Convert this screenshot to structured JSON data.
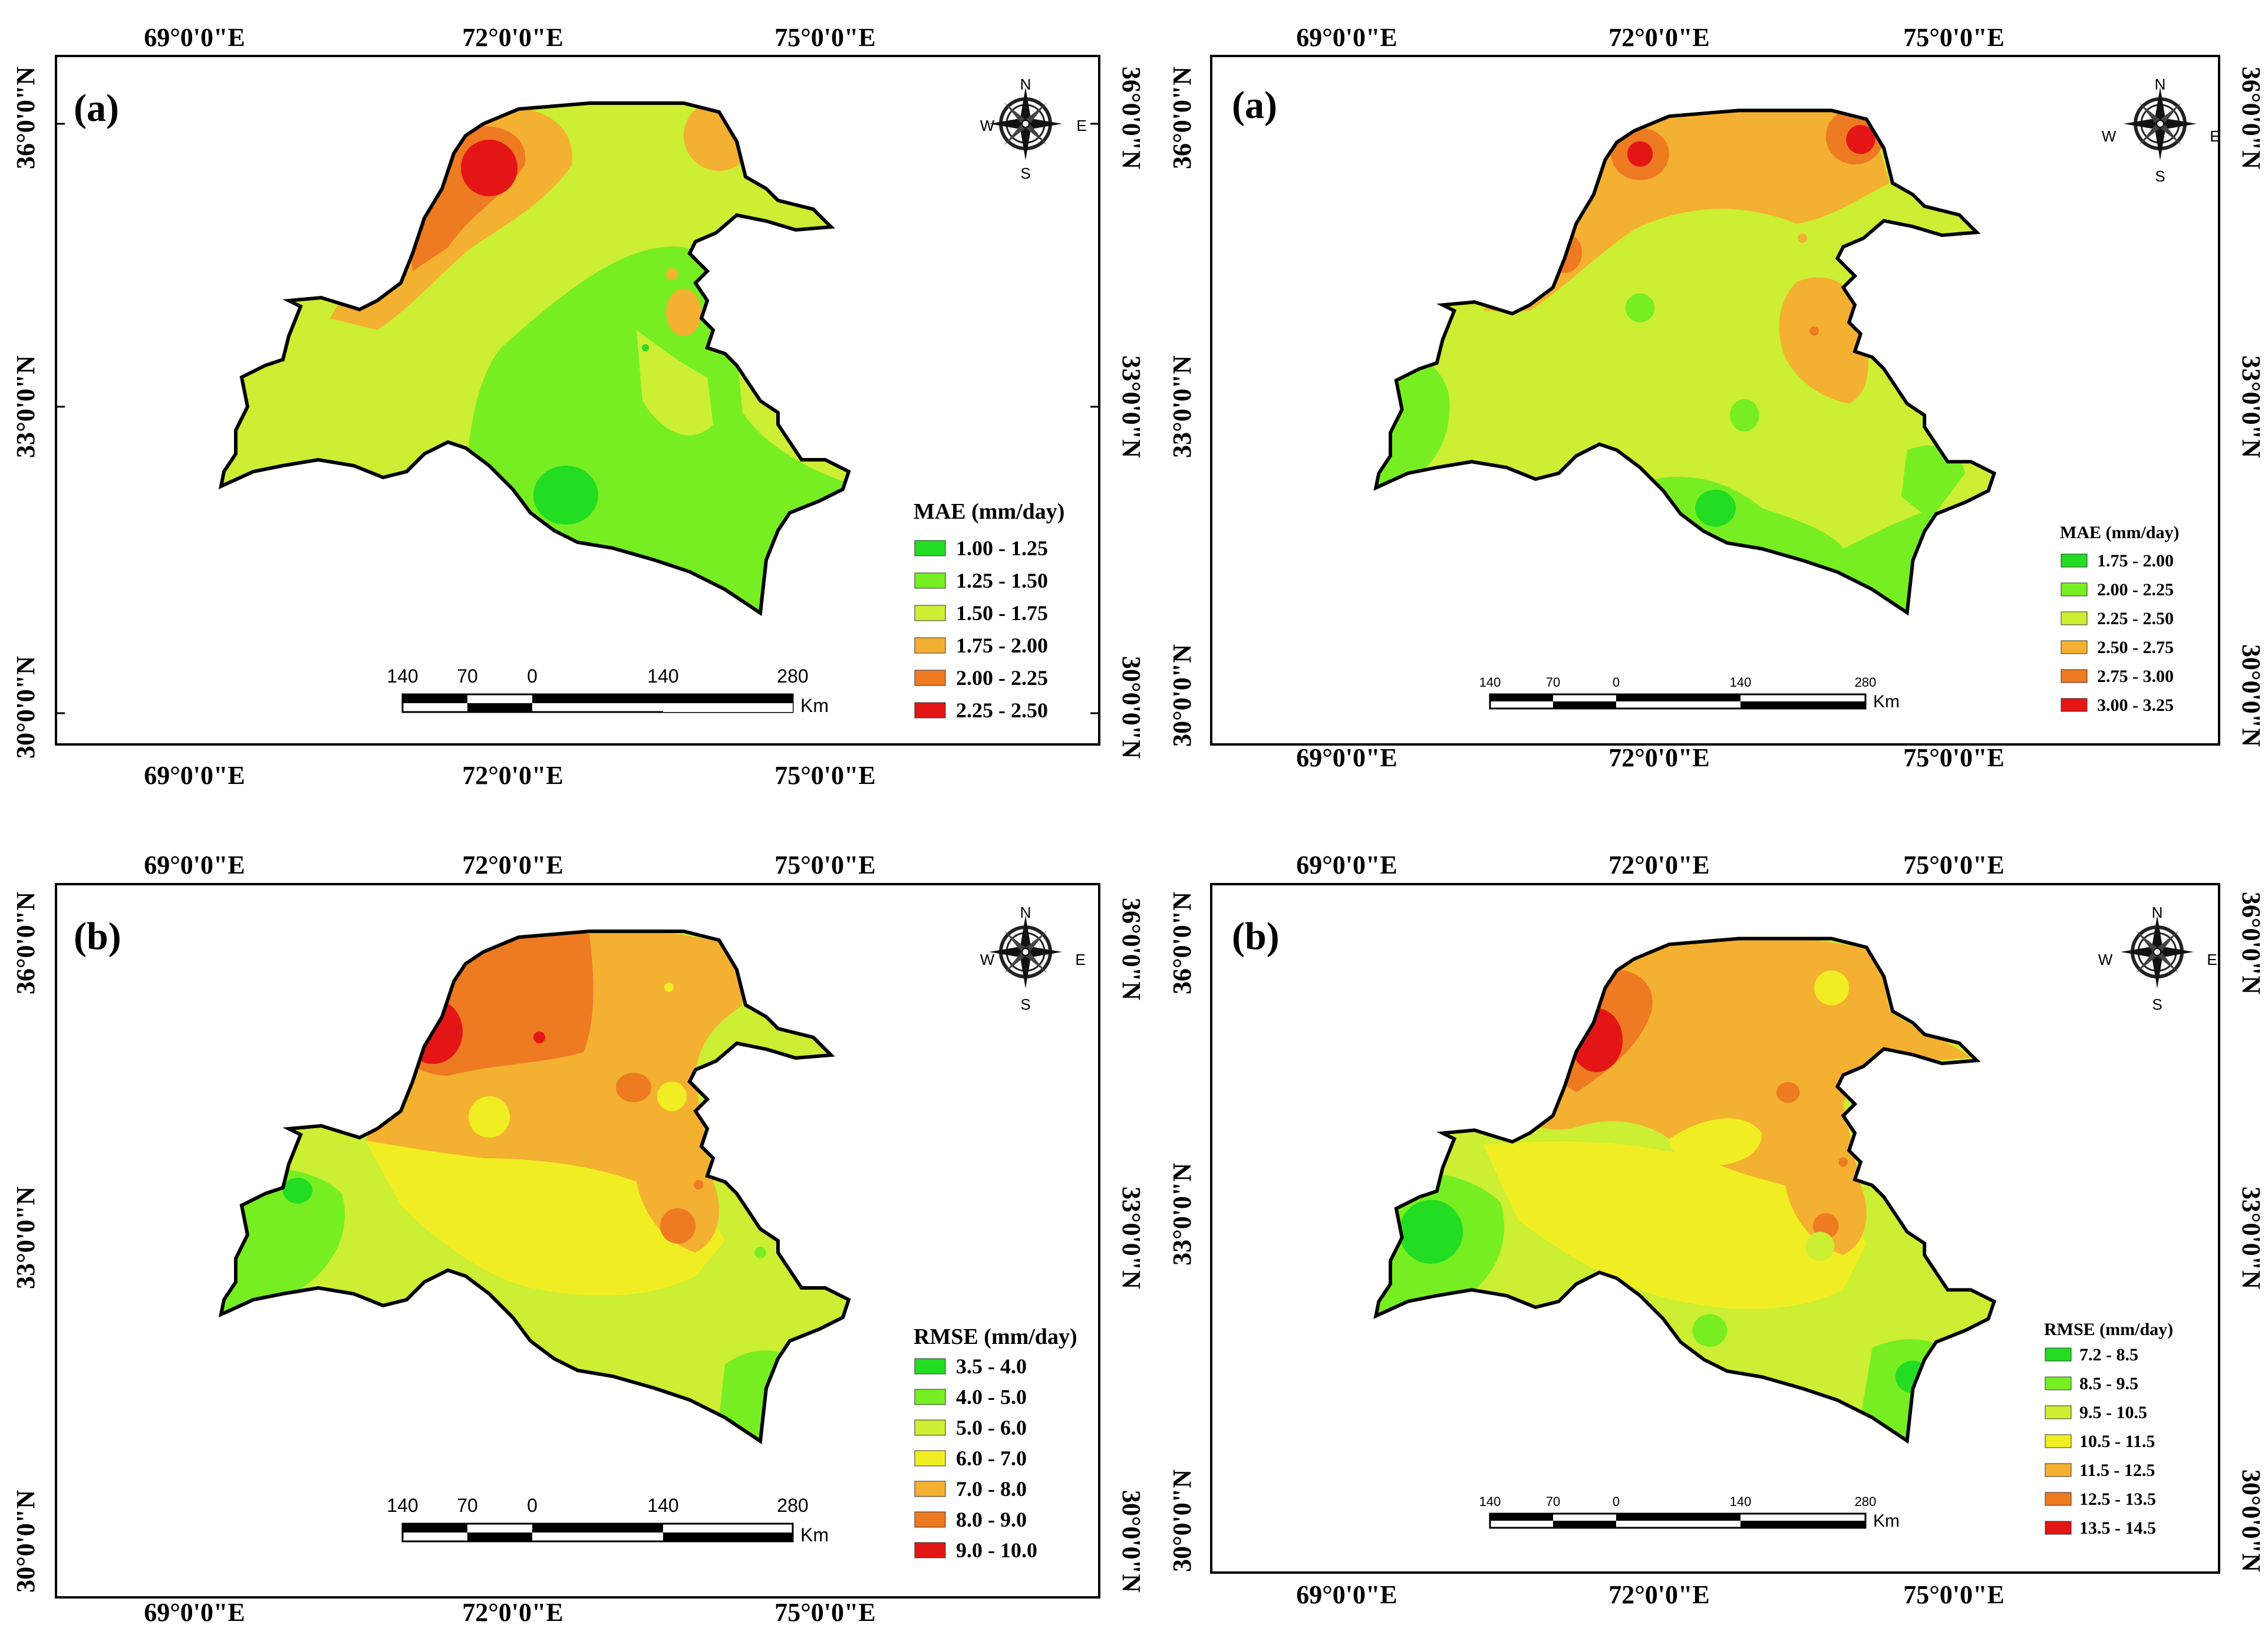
{
  "colors": {
    "green": "#22dd22",
    "lightgreen": "#77ee22",
    "yellowgreen": "#ccee33",
    "yellow": "#f0ee22",
    "orange": "#f4b030",
    "darkorange": "#ee7a22",
    "red": "#e41515"
  },
  "axis_labels": {
    "lon": [
      "69°0'0\"E",
      "72°0'0\"E",
      "75°0'0\"E"
    ],
    "lat": [
      "36°0'0\"N",
      "33°0'0\"N",
      "30°0'0\"N"
    ]
  },
  "compass": {
    "n": "N",
    "s": "S",
    "e": "E",
    "w": "W"
  },
  "scale_bar": {
    "ticks": [
      "140",
      "70",
      "0",
      "140",
      "280"
    ],
    "unit": "Km"
  },
  "panels": [
    {
      "label": "(a)",
      "legend": {
        "title": "MAE (mm/day)",
        "classes": [
          {
            "range": "1.00 - 1.25",
            "color": "#22dd22"
          },
          {
            "range": "1.25 - 1.50",
            "color": "#77ee22"
          },
          {
            "range": "1.50 - 1.75",
            "color": "#ccee33"
          },
          {
            "range": "1.75 - 2.00",
            "color": "#f4b030"
          },
          {
            "range": "2.00 - 2.25",
            "color": "#ee7a22"
          },
          {
            "range": "2.25 - 2.50",
            "color": "#e41515"
          }
        ]
      }
    },
    {
      "label": "(a)",
      "legend": {
        "title": "MAE (mm/day)",
        "classes": [
          {
            "range": "1.75 - 2.00",
            "color": "#22dd22"
          },
          {
            "range": "2.00 - 2.25",
            "color": "#77ee22"
          },
          {
            "range": "2.25 - 2.50",
            "color": "#ccee33"
          },
          {
            "range": "2.50 - 2.75",
            "color": "#f4b030"
          },
          {
            "range": "2.75 - 3.00",
            "color": "#ee7a22"
          },
          {
            "range": "3.00 - 3.25",
            "color": "#e41515"
          }
        ]
      }
    },
    {
      "label": "(b)",
      "legend": {
        "title": "RMSE (mm/day)",
        "classes": [
          {
            "range": "3.5 - 4.0",
            "color": "#22dd22"
          },
          {
            "range": "4.0 - 5.0",
            "color": "#77ee22"
          },
          {
            "range": "5.0 - 6.0",
            "color": "#ccee33"
          },
          {
            "range": "6.0 - 7.0",
            "color": "#f0ee22"
          },
          {
            "range": "7.0 - 8.0",
            "color": "#f4b030"
          },
          {
            "range": "8.0 - 9.0",
            "color": "#ee7a22"
          },
          {
            "range": "9.0 - 10.0",
            "color": "#e41515"
          }
        ]
      }
    },
    {
      "label": "(b)",
      "legend": {
        "title": "RMSE (mm/day)",
        "classes": [
          {
            "range": "7.2 - 8.5",
            "color": "#22dd22"
          },
          {
            "range": "8.5 - 9.5",
            "color": "#77ee22"
          },
          {
            "range": "9.5 - 10.5",
            "color": "#ccee33"
          },
          {
            "range": "10.5 - 11.5",
            "color": "#f0ee22"
          },
          {
            "range": "11.5 - 12.5",
            "color": "#f4b030"
          },
          {
            "range": "12.5 - 13.5",
            "color": "#ee7a22"
          },
          {
            "range": "13.5 - 14.5",
            "color": "#e41515"
          }
        ]
      }
    }
  ]
}
